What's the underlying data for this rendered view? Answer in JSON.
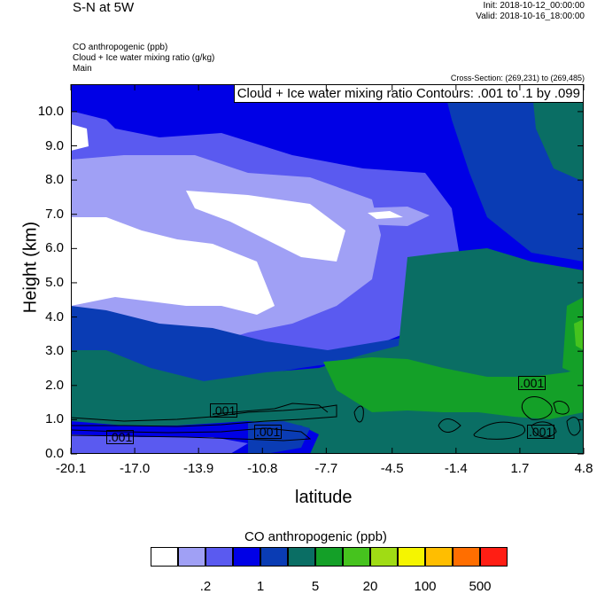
{
  "header": {
    "title": "S-N at 5W",
    "init": "Init: 2018-10-12_00:00:00",
    "valid": "Valid: 2018-10-16_18:00:00",
    "field1": "CO anthropogenic   (ppb)",
    "field2": "Cloud + Ice water mixing ratio   (g/kg)",
    "field3": "Main",
    "cross_section": "Cross-Section: (269,231) to (269,485)"
  },
  "chart_data": {
    "type": "heatmap",
    "xlabel": "latitude",
    "ylabel": "Height (km)",
    "x_ticks": [
      "-20.1",
      "-17.0",
      "-13.9",
      "-10.8",
      "-7.7",
      "-4.5",
      "-1.4",
      "1.7",
      "4.8"
    ],
    "y_ticks": [
      "0.0",
      "1.0",
      "2.0",
      "3.0",
      "4.0",
      "5.0",
      "6.0",
      "7.0",
      "8.0",
      "9.0",
      "10.0"
    ],
    "xlim": [
      -20.1,
      4.8
    ],
    "ylim": [
      0,
      10.8
    ],
    "contour_title": "Cloud + Ice water mixing ratio Contours: .001 to .1 by .099",
    "contour_labels": [
      ".001",
      ".001",
      ".001",
      ".001",
      ".001"
    ],
    "colorbar": {
      "title": "CO anthropogenic  (ppb)",
      "colors": [
        "#ffffff",
        "#a0a0f5",
        "#5a5af0",
        "#0000e6",
        "#0a3cb4",
        "#0a6e64",
        "#14a028",
        "#46c31e",
        "#a0dc14",
        "#f5f500",
        "#ffbe00",
        "#ff6e00",
        "#ff1e14"
      ],
      "labels": [
        ".2",
        "1",
        "5",
        "20",
        "100",
        "500"
      ]
    }
  }
}
